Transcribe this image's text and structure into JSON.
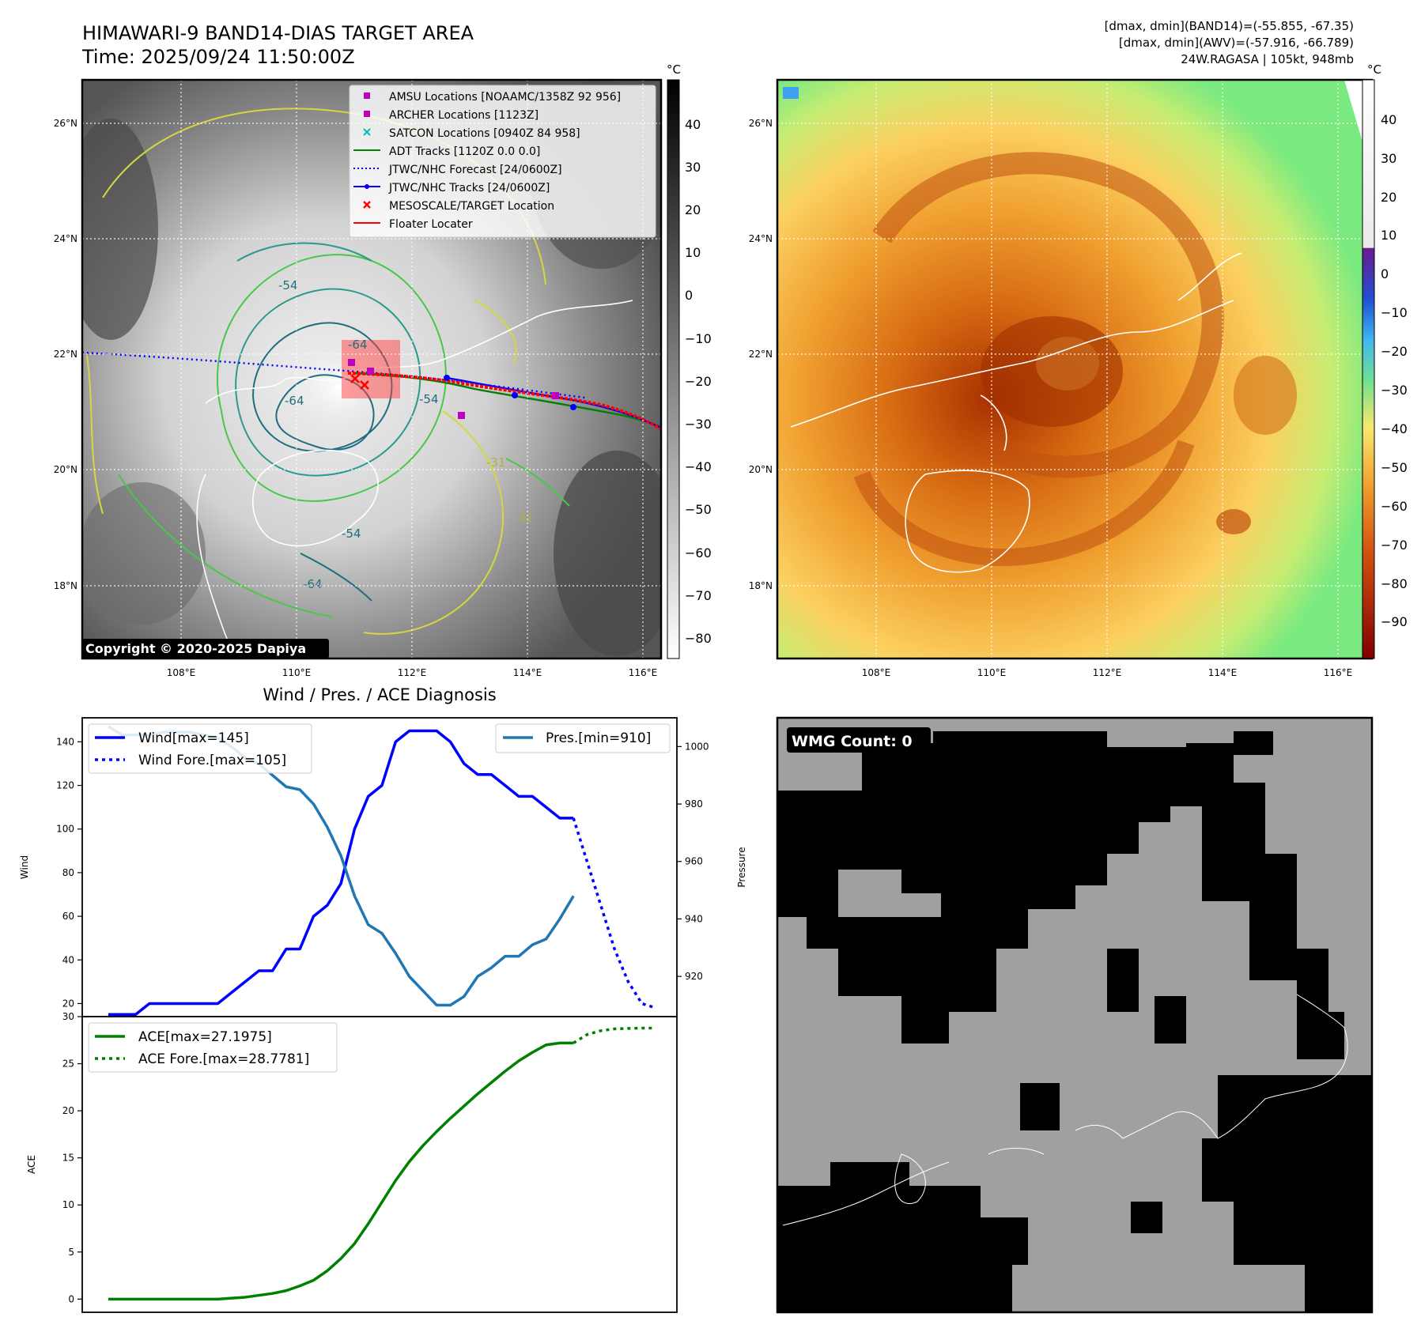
{
  "header": {
    "title_line1": "HIMAWARI-9 BAND14-DIAS TARGET AREA",
    "title_line2": "Time: 2025/09/24 11:50:00Z",
    "info_line1": "[dmax, dmin](BAND14)=(-55.855, -67.35)",
    "info_line2": "[dmax, dmin](AWV)=(-57.916, -66.789)",
    "info_line3": "24W.RAGASA | 105kt, 948mb"
  },
  "map_axes": {
    "lat_ticks": [
      "26°N",
      "24°N",
      "22°N",
      "20°N",
      "18°N"
    ],
    "lon_ticks": [
      "108°E",
      "110°E",
      "112°E",
      "114°E",
      "116°E"
    ]
  },
  "left_map": {
    "copyright": "Copyright © 2020-2025 Dapiya",
    "contour_labels": [
      "-54",
      "-64",
      "-64",
      "-54",
      "-31",
      "-54",
      "-64",
      "-31"
    ],
    "colorbar": {
      "unit": "°C",
      "ticks": [
        "40",
        "30",
        "20",
        "10",
        "0",
        "−10",
        "−20",
        "−30",
        "−40",
        "−50",
        "−60",
        "−70",
        "−80"
      ]
    },
    "legend": [
      {
        "label": "AMSU Locations [NOAAMC/1358Z 92 956]",
        "color": "#bf00bf",
        "marker": "square"
      },
      {
        "label": "ARCHER Locations [1123Z]",
        "color": "#bf00bf",
        "marker": "square"
      },
      {
        "label": "SATCON Locations [0940Z 84 958]",
        "color": "#00bfbf",
        "marker": "x"
      },
      {
        "label": "ADT Tracks [1120Z 0.0 0.0]",
        "color": "#008000",
        "marker": "line"
      },
      {
        "label": "JTWC/NHC Forecast [24/0600Z]",
        "color": "#0000ff",
        "marker": "dotted"
      },
      {
        "label": "JTWC/NHC Tracks [24/0600Z]",
        "color": "#0000ff",
        "marker": "line-dot"
      },
      {
        "label": "MESOSCALE/TARGET Location",
        "color": "#ff0000",
        "marker": "x"
      },
      {
        "label": "Floater Locater",
        "color": "#ff0000",
        "marker": "line"
      }
    ]
  },
  "right_map": {
    "colorbar": {
      "unit": "°C",
      "ticks": [
        "40",
        "30",
        "20",
        "10",
        "0",
        "−10",
        "−20",
        "−30",
        "−40",
        "−50",
        "−60",
        "−70",
        "−80",
        "−90"
      ]
    }
  },
  "wmg": {
    "label": "WMG Count: 0"
  },
  "chart_data": [
    {
      "type": "line",
      "title": "Wind / Pres. / ACE Diagnosis",
      "xlabel": "",
      "ylabel": "Wind",
      "ylabel_right": "Pressure",
      "ylim": [
        14,
        151
      ],
      "ylim_right": [
        906,
        1010
      ],
      "yticks": [
        20,
        40,
        60,
        80,
        100,
        120,
        140
      ],
      "yticks_right": [
        920,
        940,
        960,
        980,
        1000
      ],
      "legend_left": [
        "Wind[max=145]",
        "Wind Fore.[max=105]"
      ],
      "legend_right": [
        "Pres.[min=910]"
      ],
      "series": [
        {
          "name": "Wind[max=145]",
          "color": "#0000ff",
          "style": "solid",
          "x": [
            0,
            1,
            2,
            3,
            4,
            5,
            6,
            7,
            8,
            9,
            10,
            11,
            12,
            13,
            14,
            15,
            16,
            17,
            18,
            19,
            20,
            21,
            22,
            23,
            24,
            25,
            26,
            27,
            28,
            29,
            30,
            31,
            32,
            33,
            34
          ],
          "values": [
            15,
            15,
            15,
            20,
            20,
            20,
            20,
            20,
            20,
            25,
            30,
            35,
            35,
            45,
            45,
            60,
            65,
            75,
            100,
            115,
            120,
            140,
            145,
            145,
            145,
            140,
            130,
            125,
            125,
            120,
            115,
            115,
            110,
            105,
            105
          ]
        },
        {
          "name": "Wind Fore.[max=105]",
          "color": "#0000ff",
          "style": "dotted",
          "x": [
            34,
            35,
            36,
            37,
            38,
            39,
            40
          ],
          "values": [
            105,
            85,
            65,
            45,
            30,
            20,
            18
          ]
        },
        {
          "name": "Pres.[min=910]",
          "color": "#1f77b4",
          "style": "solid",
          "axis": "right",
          "x": [
            0,
            1,
            2,
            3,
            4,
            5,
            6,
            7,
            8,
            9,
            10,
            11,
            12,
            13,
            14,
            15,
            16,
            17,
            18,
            19,
            20,
            21,
            22,
            23,
            24,
            25,
            26,
            27,
            28,
            29,
            30,
            31,
            32,
            33,
            34
          ],
          "values": [
            1007,
            1004,
            1004,
            1004,
            1005,
            1005,
            1005,
            1004,
            1003,
            1000,
            996,
            994,
            990,
            986,
            985,
            980,
            972,
            962,
            948,
            938,
            935,
            928,
            920,
            915,
            910,
            910,
            913,
            920,
            923,
            927,
            927,
            931,
            933,
            940,
            948
          ]
        }
      ]
    },
    {
      "type": "line",
      "title": "",
      "xlabel": "",
      "ylabel": "ACE",
      "ylim": [
        -1.4,
        30
      ],
      "yticks": [
        0,
        5,
        10,
        15,
        20,
        25,
        30
      ],
      "legend": [
        "ACE[max=27.1975]",
        "ACE Fore.[max=28.7781]"
      ],
      "series": [
        {
          "name": "ACE[max=27.1975]",
          "color": "#008000",
          "style": "solid",
          "x": [
            0,
            1,
            2,
            3,
            4,
            5,
            6,
            7,
            8,
            9,
            10,
            11,
            12,
            13,
            14,
            15,
            16,
            17,
            18,
            19,
            20,
            21,
            22,
            23,
            24,
            25,
            26,
            27,
            28,
            29,
            30,
            31,
            32,
            33,
            34
          ],
          "values": [
            0,
            0,
            0,
            0,
            0,
            0,
            0,
            0,
            0,
            0.1,
            0.2,
            0.4,
            0.6,
            0.9,
            1.4,
            2,
            3,
            4.3,
            5.9,
            8,
            10.3,
            12.6,
            14.6,
            16.3,
            17.8,
            19.2,
            20.5,
            21.8,
            23,
            24.2,
            25.3,
            26.2,
            27.0,
            27.2,
            27.2
          ]
        },
        {
          "name": "ACE Fore.[max=28.7781]",
          "color": "#008000",
          "style": "dotted",
          "x": [
            34,
            35,
            36,
            37,
            38,
            39,
            40
          ],
          "values": [
            27.2,
            28.1,
            28.5,
            28.7,
            28.75,
            28.78,
            28.78
          ]
        }
      ]
    }
  ]
}
